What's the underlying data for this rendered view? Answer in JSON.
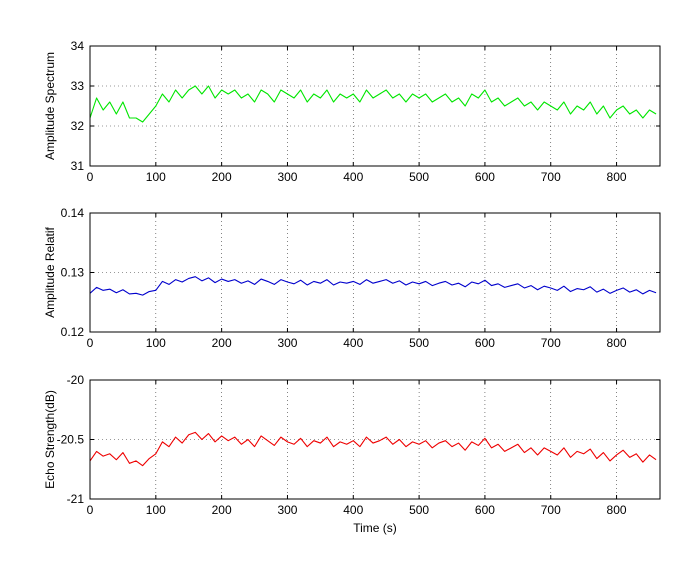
{
  "chart_data": [
    {
      "type": "line",
      "ylabel": "Amplitude Spectrum",
      "xlabel": "",
      "xlim": [
        0,
        866
      ],
      "ylim": [
        31,
        34
      ],
      "xticks": [
        "0",
        "100",
        "200",
        "300",
        "400",
        "500",
        "600",
        "700",
        "800"
      ],
      "yticks": [
        "31",
        "32",
        "33",
        "34"
      ],
      "grid": true,
      "color": "#00e600",
      "series": [
        {
          "x": [
            0,
            10,
            20,
            30,
            40,
            50,
            60,
            70,
            80,
            90,
            100,
            110,
            120,
            130,
            140,
            150,
            160,
            170,
            180,
            190,
            200,
            210,
            220,
            230,
            240,
            250,
            260,
            270,
            280,
            290,
            300,
            310,
            320,
            330,
            340,
            350,
            360,
            370,
            380,
            390,
            400,
            410,
            420,
            430,
            440,
            450,
            460,
            470,
            480,
            490,
            500,
            510,
            520,
            530,
            540,
            550,
            560,
            570,
            580,
            590,
            600,
            610,
            620,
            630,
            640,
            650,
            660,
            670,
            680,
            690,
            700,
            710,
            720,
            730,
            740,
            750,
            760,
            770,
            780,
            790,
            800,
            810,
            820,
            830,
            840,
            850,
            860
          ],
          "values": [
            32.2,
            32.7,
            32.4,
            32.6,
            32.3,
            32.6,
            32.2,
            32.2,
            32.1,
            32.3,
            32.5,
            32.8,
            32.6,
            32.9,
            32.7,
            32.9,
            33.0,
            32.8,
            33.0,
            32.7,
            32.9,
            32.8,
            32.9,
            32.7,
            32.8,
            32.6,
            32.9,
            32.8,
            32.6,
            32.9,
            32.8,
            32.7,
            32.9,
            32.6,
            32.8,
            32.7,
            32.9,
            32.6,
            32.8,
            32.7,
            32.8,
            32.6,
            32.9,
            32.7,
            32.8,
            32.9,
            32.7,
            32.8,
            32.6,
            32.8,
            32.7,
            32.8,
            32.6,
            32.7,
            32.8,
            32.6,
            32.7,
            32.5,
            32.8,
            32.7,
            32.9,
            32.6,
            32.7,
            32.5,
            32.6,
            32.7,
            32.5,
            32.6,
            32.4,
            32.6,
            32.5,
            32.4,
            32.6,
            32.3,
            32.5,
            32.4,
            32.6,
            32.3,
            32.5,
            32.2,
            32.4,
            32.5,
            32.3,
            32.4,
            32.2,
            32.4,
            32.3
          ]
        }
      ]
    },
    {
      "type": "line",
      "ylabel": "Amplitude Relatif",
      "xlabel": "",
      "xlim": [
        0,
        866
      ],
      "ylim": [
        0.12,
        0.14
      ],
      "xticks": [
        "0",
        "100",
        "200",
        "300",
        "400",
        "500",
        "600",
        "700",
        "800"
      ],
      "yticks": [
        "0.12",
        "0.13",
        "0.14"
      ],
      "grid": true,
      "color": "#0000cc",
      "series": [
        {
          "x": [
            0,
            10,
            20,
            30,
            40,
            50,
            60,
            70,
            80,
            90,
            100,
            110,
            120,
            130,
            140,
            150,
            160,
            170,
            180,
            190,
            200,
            210,
            220,
            230,
            240,
            250,
            260,
            270,
            280,
            290,
            300,
            310,
            320,
            330,
            340,
            350,
            360,
            370,
            380,
            390,
            400,
            410,
            420,
            430,
            440,
            450,
            460,
            470,
            480,
            490,
            500,
            510,
            520,
            530,
            540,
            550,
            560,
            570,
            580,
            590,
            600,
            610,
            620,
            630,
            640,
            650,
            660,
            670,
            680,
            690,
            700,
            710,
            720,
            730,
            740,
            750,
            760,
            770,
            780,
            790,
            800,
            810,
            820,
            830,
            840,
            850,
            860
          ],
          "values": [
            0.1265,
            0.1275,
            0.127,
            0.1272,
            0.1266,
            0.1271,
            0.1264,
            0.1265,
            0.1262,
            0.1268,
            0.127,
            0.1285,
            0.128,
            0.1288,
            0.1284,
            0.129,
            0.1293,
            0.1286,
            0.1291,
            0.1283,
            0.1289,
            0.1285,
            0.1288,
            0.1282,
            0.1286,
            0.128,
            0.1289,
            0.1285,
            0.128,
            0.1288,
            0.1284,
            0.1281,
            0.1287,
            0.1279,
            0.1285,
            0.1282,
            0.1288,
            0.1279,
            0.1284,
            0.1282,
            0.1285,
            0.128,
            0.1288,
            0.1282,
            0.1285,
            0.1288,
            0.1282,
            0.1286,
            0.1279,
            0.1284,
            0.1281,
            0.1285,
            0.1278,
            0.1282,
            0.1285,
            0.1279,
            0.1282,
            0.1276,
            0.1284,
            0.1281,
            0.1287,
            0.1278,
            0.1281,
            0.1275,
            0.1278,
            0.1281,
            0.1274,
            0.1278,
            0.1271,
            0.1277,
            0.1274,
            0.127,
            0.1277,
            0.1268,
            0.1273,
            0.1271,
            0.1276,
            0.1267,
            0.1272,
            0.1265,
            0.127,
            0.1274,
            0.1267,
            0.1271,
            0.1264,
            0.127,
            0.1266
          ]
        }
      ]
    },
    {
      "type": "line",
      "ylabel": "Echo Strength(dB)",
      "xlabel": "Time (s)",
      "xlim": [
        0,
        866
      ],
      "ylim": [
        -21,
        -20
      ],
      "xticks": [
        "0",
        "100",
        "200",
        "300",
        "400",
        "500",
        "600",
        "700",
        "800"
      ],
      "yticks": [
        "-21",
        "-20.5",
        "-20"
      ],
      "grid": true,
      "color": "#ee0000",
      "series": [
        {
          "x": [
            0,
            10,
            20,
            30,
            40,
            50,
            60,
            70,
            80,
            90,
            100,
            110,
            120,
            130,
            140,
            150,
            160,
            170,
            180,
            190,
            200,
            210,
            220,
            230,
            240,
            250,
            260,
            270,
            280,
            290,
            300,
            310,
            320,
            330,
            340,
            350,
            360,
            370,
            380,
            390,
            400,
            410,
            420,
            430,
            440,
            450,
            460,
            470,
            480,
            490,
            500,
            510,
            520,
            530,
            540,
            550,
            560,
            570,
            580,
            590,
            600,
            610,
            620,
            630,
            640,
            650,
            660,
            670,
            680,
            690,
            700,
            710,
            720,
            730,
            740,
            750,
            760,
            770,
            780,
            790,
            800,
            810,
            820,
            830,
            840,
            850,
            860
          ],
          "values": [
            -20.68,
            -20.6,
            -20.64,
            -20.62,
            -20.67,
            -20.61,
            -20.7,
            -20.68,
            -20.72,
            -20.66,
            -20.62,
            -20.52,
            -20.56,
            -20.48,
            -20.53,
            -20.46,
            -20.44,
            -20.5,
            -20.45,
            -20.52,
            -20.47,
            -20.51,
            -20.48,
            -20.54,
            -20.5,
            -20.56,
            -20.47,
            -20.51,
            -20.55,
            -20.48,
            -20.52,
            -20.54,
            -20.49,
            -20.56,
            -20.51,
            -20.53,
            -20.48,
            -20.56,
            -20.52,
            -20.54,
            -20.51,
            -20.56,
            -20.48,
            -20.53,
            -20.51,
            -20.48,
            -20.54,
            -20.5,
            -20.56,
            -20.52,
            -20.54,
            -20.51,
            -20.57,
            -20.53,
            -20.51,
            -20.56,
            -20.53,
            -20.59,
            -20.52,
            -20.55,
            -20.49,
            -20.57,
            -20.54,
            -20.6,
            -20.57,
            -20.54,
            -20.61,
            -20.57,
            -20.63,
            -20.57,
            -20.6,
            -20.63,
            -20.57,
            -20.65,
            -20.6,
            -20.62,
            -20.58,
            -20.66,
            -20.61,
            -20.68,
            -20.63,
            -20.59,
            -20.65,
            -20.62,
            -20.69,
            -20.63,
            -20.67
          ]
        }
      ]
    }
  ]
}
